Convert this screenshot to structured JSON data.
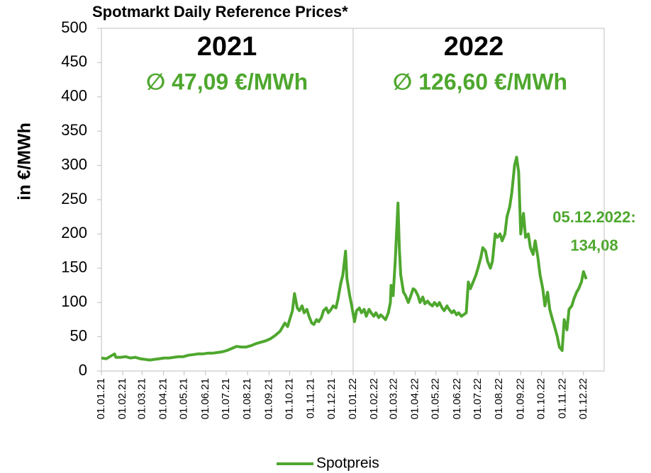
{
  "chart_data": {
    "type": "line",
    "title": "Spotmarkt Daily Reference Prices*",
    "y_label": "in €/MWh",
    "annotations": {
      "year_2021": "2021",
      "avg_2021": "∅ 47,09 €/MWh",
      "year_2022": "2022",
      "avg_2022": "∅ 126,60 €/MWh",
      "last_date": "05.12.2022:",
      "last_value": "134,08"
    },
    "xlim": [
      "01.01.21",
      "31.12.22"
    ],
    "xticks": [
      "01.01.21",
      "01.02.21",
      "01.03.21",
      "01.04.21",
      "01.05.21",
      "01.06.21",
      "01.07.21",
      "01.08.21",
      "01.09.21",
      "01.10.21",
      "01.11.21",
      "01.12.21",
      "01.01.22",
      "01.02.22",
      "01.03.22",
      "01.04.22",
      "01.05.22",
      "01.06.22",
      "01.07.22",
      "01.08.22",
      "01.09.22",
      "01.10.22",
      "01.11.22",
      "01.12.22"
    ],
    "ylim": [
      0,
      500
    ],
    "yticks": [
      0,
      50,
      100,
      150,
      200,
      250,
      300,
      350,
      400,
      450,
      500
    ],
    "x": [
      "01.01.21",
      "08.01.21",
      "15.01.21",
      "20.01.21",
      "22.01.21",
      "29.01.21",
      "05.02.21",
      "12.02.21",
      "19.02.21",
      "26.02.21",
      "05.03.21",
      "12.03.21",
      "19.03.21",
      "26.03.21",
      "02.04.21",
      "09.04.21",
      "16.04.21",
      "23.04.21",
      "30.04.21",
      "07.05.21",
      "14.05.21",
      "21.05.21",
      "28.05.21",
      "04.06.21",
      "11.06.21",
      "18.06.21",
      "25.06.21",
      "02.07.21",
      "09.07.21",
      "16.07.21",
      "23.07.21",
      "30.07.21",
      "06.08.21",
      "13.08.21",
      "20.08.21",
      "27.08.21",
      "03.09.21",
      "10.09.21",
      "17.09.21",
      "24.09.21",
      "28.09.21",
      "01.10.21",
      "05.10.21",
      "08.10.21",
      "12.10.21",
      "15.10.21",
      "19.10.21",
      "22.10.21",
      "26.10.21",
      "29.10.21",
      "02.11.21",
      "05.11.21",
      "09.11.21",
      "12.11.21",
      "16.11.21",
      "19.11.21",
      "23.11.21",
      "26.11.21",
      "30.11.21",
      "03.12.21",
      "07.12.21",
      "10.12.21",
      "14.12.21",
      "17.12.21",
      "21.12.21",
      "23.12.21",
      "27.12.21",
      "30.12.21",
      "03.01.22",
      "06.01.22",
      "10.01.22",
      "13.01.22",
      "17.01.22",
      "20.01.22",
      "24.01.22",
      "27.01.22",
      "31.01.22",
      "03.02.22",
      "07.02.22",
      "10.02.22",
      "14.02.22",
      "17.02.22",
      "21.02.22",
      "24.02.22",
      "25.02.22",
      "28.02.22",
      "03.03.22",
      "07.03.22",
      "09.03.22",
      "11.03.22",
      "15.03.22",
      "18.03.22",
      "22.03.22",
      "25.03.22",
      "29.03.22",
      "01.04.22",
      "05.04.22",
      "08.04.22",
      "12.04.22",
      "15.04.22",
      "19.04.22",
      "22.04.22",
      "26.04.22",
      "29.04.22",
      "03.05.22",
      "06.05.22",
      "10.05.22",
      "13.05.22",
      "17.05.22",
      "20.05.22",
      "24.05.22",
      "27.05.22",
      "31.05.22",
      "03.06.22",
      "07.06.22",
      "10.06.22",
      "14.06.22",
      "17.06.22",
      "20.06.22",
      "24.06.22",
      "28.06.22",
      "01.07.22",
      "05.07.22",
      "08.07.22",
      "12.07.22",
      "15.07.22",
      "19.07.22",
      "22.07.22",
      "26.07.22",
      "29.07.22",
      "02.08.22",
      "05.08.22",
      "09.08.22",
      "12.08.22",
      "16.08.22",
      "19.08.22",
      "23.08.22",
      "26.08.22",
      "29.08.22",
      "01.09.22",
      "05.09.22",
      "08.09.22",
      "12.09.22",
      "15.09.22",
      "19.09.22",
      "22.09.22",
      "26.09.22",
      "29.09.22",
      "03.10.22",
      "06.10.22",
      "10.10.22",
      "13.10.22",
      "17.10.22",
      "20.10.22",
      "24.10.22",
      "27.10.22",
      "31.10.22",
      "03.11.22",
      "07.11.22",
      "10.11.22",
      "14.11.22",
      "17.11.22",
      "21.11.22",
      "24.11.22",
      "28.11.22",
      "01.12.22",
      "05.12.22"
    ],
    "series": [
      {
        "name": "Spotpreis",
        "color": "#4ea72e",
        "values": [
          19,
          18,
          22,
          25,
          20,
          20,
          21,
          19,
          20,
          18,
          17,
          16,
          17,
          18,
          19,
          19,
          20,
          21,
          21,
          23,
          24,
          25,
          25,
          26,
          26,
          27,
          28,
          30,
          33,
          36,
          35,
          35,
          37,
          40,
          42,
          44,
          47,
          52,
          58,
          70,
          65,
          75,
          88,
          113,
          92,
          88,
          95,
          85,
          90,
          80,
          70,
          68,
          75,
          72,
          78,
          88,
          92,
          85,
          90,
          95,
          92,
          105,
          128,
          140,
          175,
          135,
          110,
          95,
          72,
          88,
          92,
          85,
          90,
          80,
          90,
          85,
          80,
          85,
          78,
          82,
          78,
          75,
          85,
          100,
          125,
          110,
          160,
          245,
          180,
          140,
          115,
          110,
          100,
          108,
          120,
          118,
          110,
          100,
          108,
          98,
          102,
          98,
          95,
          100,
          95,
          100,
          92,
          88,
          95,
          90,
          85,
          88,
          82,
          85,
          80,
          82,
          85,
          130,
          120,
          130,
          140,
          150,
          165,
          180,
          175,
          160,
          150,
          160,
          200,
          195,
          200,
          190,
          200,
          225,
          240,
          260,
          300,
          312,
          290,
          200,
          230,
          195,
          200,
          180,
          170,
          190,
          165,
          140,
          120,
          95,
          115,
          90,
          75,
          65,
          50,
          35,
          30,
          75,
          60,
          90,
          95,
          105,
          115,
          120,
          130,
          145,
          134.08
        ]
      }
    ]
  }
}
